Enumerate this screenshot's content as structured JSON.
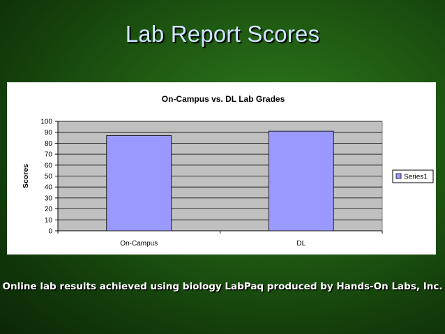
{
  "slide": {
    "title": "Lab Report Scores",
    "footer": "Online lab results achieved using biology LabPaq produced by Hands-On Labs, Inc."
  },
  "chart_data": {
    "type": "bar",
    "title": "On-Campus vs. DL Lab Grades",
    "xlabel": "",
    "ylabel": "Scores",
    "categories": [
      "On-Campus",
      "DL"
    ],
    "series": [
      {
        "name": "Series1",
        "values": [
          87,
          91
        ],
        "color": "#9999ff"
      }
    ],
    "ylim": [
      0,
      100
    ],
    "yticks": [
      0,
      10,
      20,
      30,
      40,
      50,
      60,
      70,
      80,
      90,
      100
    ],
    "grid": true,
    "plot_background": "#c0c0c0",
    "legend": "right"
  }
}
